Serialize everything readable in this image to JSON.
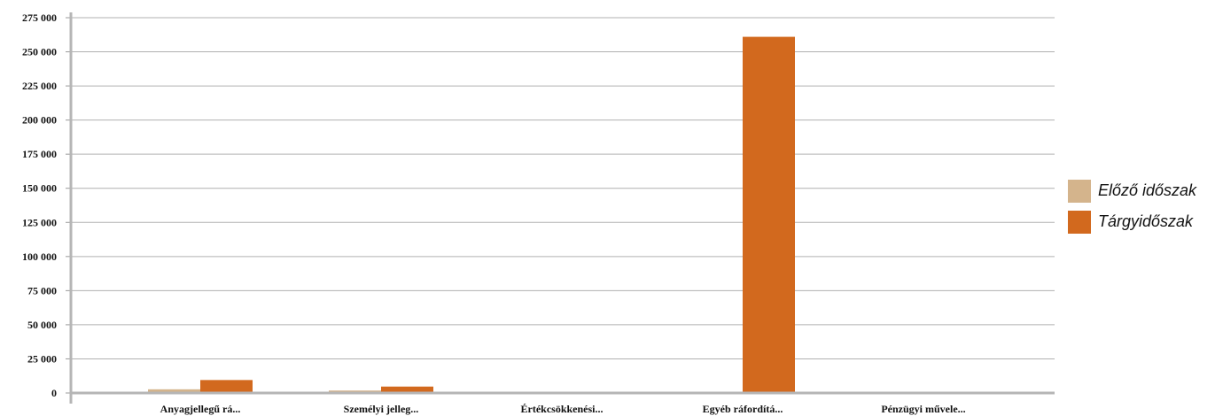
{
  "chart_data": {
    "type": "bar",
    "title": "",
    "xlabel": "",
    "ylabel": "",
    "categories": [
      "Anyagjellegű rá...",
      "Személyi jelleg...",
      "Értékcsökkenési...",
      "Egyéb ráfordítá...",
      "Pénzügyi művele..."
    ],
    "series": [
      {
        "name": "Előző időszak",
        "color": "#d4b48c",
        "values": [
          2700,
          1800,
          800,
          0,
          0
        ]
      },
      {
        "name": "Tárgyidőszak",
        "color": "#d2691e",
        "values": [
          9500,
          4700,
          0,
          261000,
          0
        ]
      }
    ],
    "yticks": [
      0,
      25000,
      50000,
      75000,
      100000,
      125000,
      150000,
      175000,
      200000,
      225000,
      250000,
      275000
    ],
    "ytick_labels": [
      "0",
      "25 000",
      "50 000",
      "75 000",
      "100 000",
      "125 000",
      "150 000",
      "175 000",
      "200 000",
      "225 000",
      "250 000",
      "275 000"
    ],
    "ylim": [
      0,
      275000
    ],
    "grid": true,
    "legend_position": "right"
  }
}
